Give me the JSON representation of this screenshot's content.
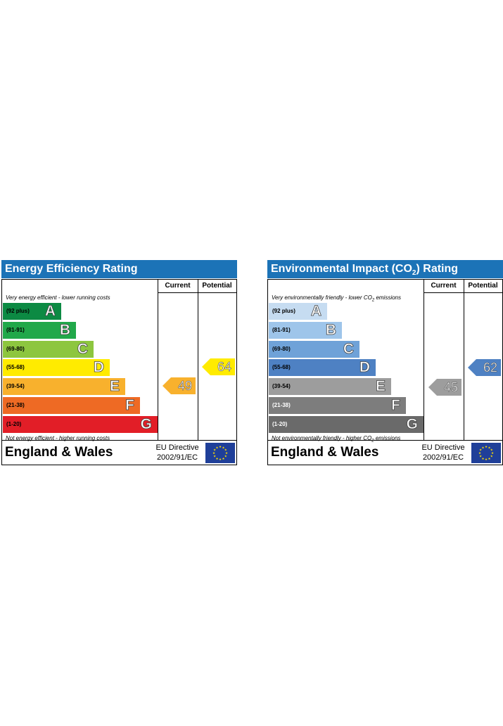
{
  "colors": {
    "header": "#1c73b7",
    "energy_bands": [
      "#0c8a43",
      "#21a84a",
      "#8dc63f",
      "#ffeb00",
      "#f8b12d",
      "#ee6a24",
      "#e21e27"
    ],
    "env_bands": [
      "#c6dcf1",
      "#9ec5ea",
      "#6fa2d8",
      "#4e81c3",
      "#9d9d9d",
      "#7d7d7d",
      "#6a6a6a"
    ],
    "eu_flag": "#1f3f99",
    "eu_stars": "#ffde00"
  },
  "icons": {
    "eu_flag": "eu-flag-icon"
  },
  "chart_data": [
    {
      "type": "bar",
      "title": "Energy Efficiency Rating",
      "columns": [
        "Current",
        "Potential"
      ],
      "top_note": "Very energy efficient - lower running costs",
      "bottom_note": "Not energy efficient - higher running costs",
      "categories": [
        "A",
        "B",
        "C",
        "D",
        "E",
        "F",
        "G"
      ],
      "ranges": [
        "(92 plus)",
        "(81-91)",
        "(69-80)",
        "(55-68)",
        "(39-54)",
        "(21-38)",
        "(1-20)"
      ],
      "current": 49,
      "potential": 64,
      "footer": {
        "country": "England & Wales",
        "directive_line1": "EU Directive",
        "directive_line2": "2002/91/EC"
      }
    },
    {
      "type": "bar",
      "title_prefix": "Environmental Impact (CO",
      "title_sub": "2",
      "title_suffix": ") Rating",
      "columns": [
        "Current",
        "Potential"
      ],
      "top_note_prefix": "Very environmentally friendly - lower CO",
      "top_note_sub": "2",
      "top_note_suffix": " emissions",
      "bottom_note_prefix": "Not environmentally friendly - higher CO",
      "bottom_note_sub": "2",
      "bottom_note_suffix": " emissions",
      "categories": [
        "A",
        "B",
        "C",
        "D",
        "E",
        "F",
        "G"
      ],
      "ranges": [
        "(92 plus)",
        "(81-91)",
        "(69-80)",
        "(55-68)",
        "(39-54)",
        "(21-38)",
        "(1-20)"
      ],
      "current": 45,
      "potential": 62,
      "footer": {
        "country": "England & Wales",
        "directive_line1": "EU Directive",
        "directive_line2": "2002/91/EC"
      }
    }
  ]
}
